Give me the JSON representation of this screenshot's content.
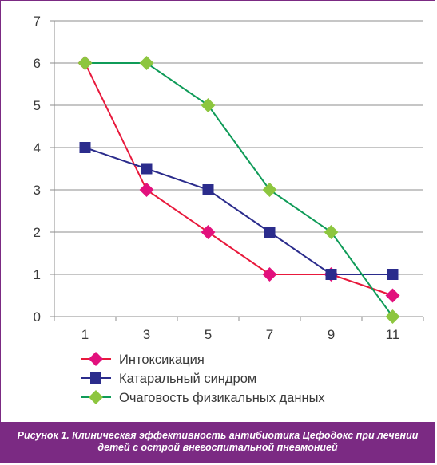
{
  "caption": {
    "label": "Рисунок 1.",
    "line1": "Клиническая эффективность антибиотика Цефодокс при лечении",
    "line2": "детей с острой внегоспитальной пневмонией"
  },
  "chart_data": {
    "type": "line",
    "title": "",
    "xlabel": "",
    "ylabel": "",
    "categories": [
      "1",
      "3",
      "5",
      "7",
      "9",
      "11"
    ],
    "ylim": [
      0,
      7
    ],
    "yticks": [
      0,
      1,
      2,
      3,
      4,
      5,
      6,
      7
    ],
    "grid": "horizontal",
    "legend_position": "bottom",
    "series": [
      {
        "name": "Интоксикация",
        "values": [
          6,
          3,
          2,
          1,
          1,
          0.5
        ],
        "color": "#e8193c",
        "marker": "diamond",
        "marker_color": "#e2117d"
      },
      {
        "name": "Катаральный синдром",
        "values": [
          4,
          3.5,
          3,
          2,
          1,
          1
        ],
        "color": "#2b2c8c",
        "marker": "square",
        "marker_color": "#2b2c8c"
      },
      {
        "name": "Очаговость физикальных данных",
        "values": [
          6,
          6,
          5,
          3,
          2,
          0
        ],
        "color": "#0f9b58",
        "marker": "diamond",
        "marker_color": "#8dc63f"
      }
    ]
  }
}
